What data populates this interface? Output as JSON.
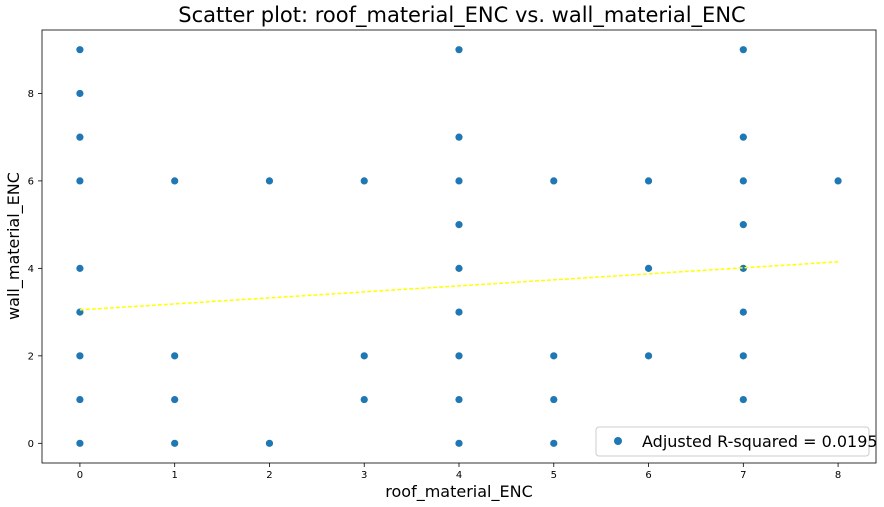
{
  "chart_data": {
    "type": "scatter",
    "title": "Scatter plot: roof_material_ENC vs. wall_material_ENC",
    "xlabel": "roof_material_ENC",
    "ylabel": "wall_material_ENC",
    "xlim": [
      -0.4,
      8.4
    ],
    "ylim": [
      -0.45,
      9.45
    ],
    "xticks": [
      0,
      1,
      2,
      3,
      4,
      5,
      6,
      7,
      8
    ],
    "yticks": [
      0,
      2,
      4,
      6,
      8
    ],
    "grid": false,
    "legend_position": "lower-right",
    "series": [
      {
        "name": "Adjusted R-squared = 0.0195",
        "color": "#1f77b4",
        "points": [
          [
            0,
            0
          ],
          [
            0,
            1
          ],
          [
            0,
            2
          ],
          [
            0,
            3
          ],
          [
            0,
            4
          ],
          [
            0,
            6
          ],
          [
            0,
            7
          ],
          [
            0,
            8
          ],
          [
            0,
            9
          ],
          [
            1,
            0
          ],
          [
            1,
            1
          ],
          [
            1,
            2
          ],
          [
            1,
            6
          ],
          [
            2,
            0
          ],
          [
            2,
            6
          ],
          [
            3,
            1
          ],
          [
            3,
            2
          ],
          [
            3,
            6
          ],
          [
            4,
            0
          ],
          [
            4,
            1
          ],
          [
            4,
            2
          ],
          [
            4,
            3
          ],
          [
            4,
            4
          ],
          [
            4,
            5
          ],
          [
            4,
            6
          ],
          [
            4,
            7
          ],
          [
            4,
            9
          ],
          [
            5,
            0
          ],
          [
            5,
            1
          ],
          [
            5,
            2
          ],
          [
            5,
            6
          ],
          [
            6,
            2
          ],
          [
            6,
            4
          ],
          [
            6,
            6
          ],
          [
            7,
            1
          ],
          [
            7,
            2
          ],
          [
            7,
            3
          ],
          [
            7,
            4
          ],
          [
            7,
            5
          ],
          [
            7,
            6
          ],
          [
            7,
            7
          ],
          [
            7,
            9
          ],
          [
            8,
            6
          ]
        ]
      }
    ],
    "trendline": {
      "color": "#ffff00",
      "style": "dashed",
      "x": [
        0,
        8
      ],
      "y": [
        3.05,
        4.15
      ]
    }
  }
}
